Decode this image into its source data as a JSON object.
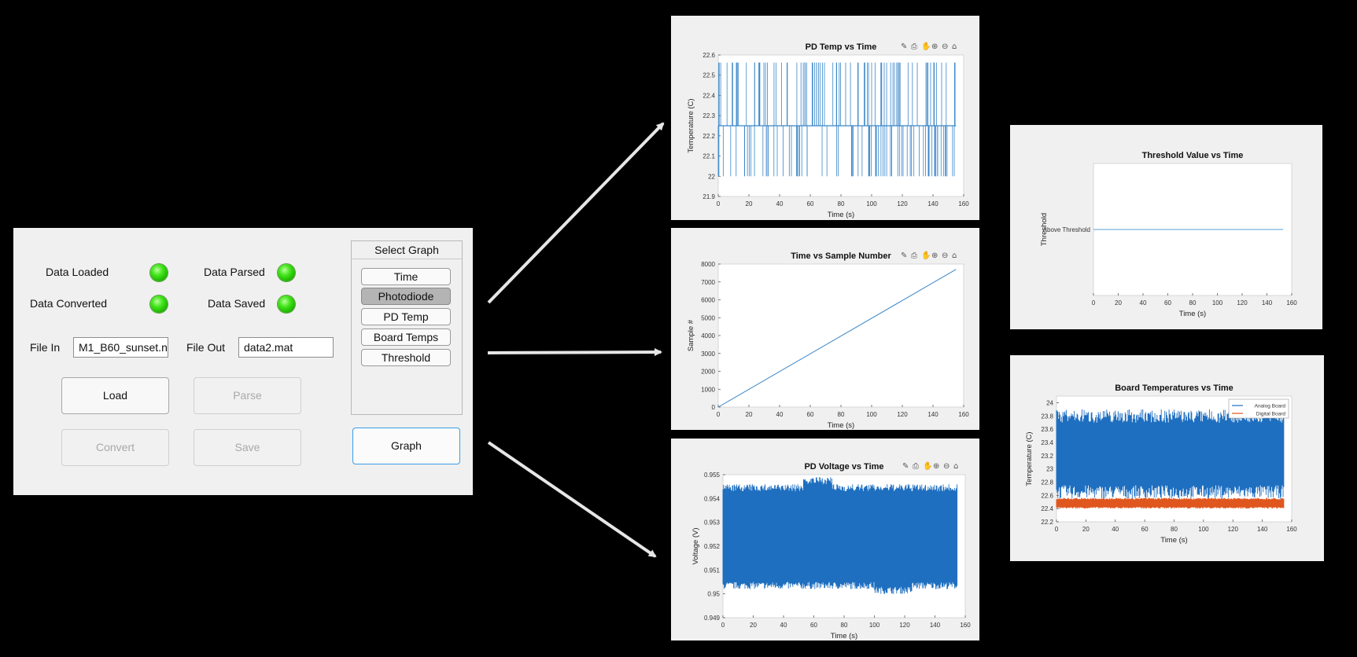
{
  "panel": {
    "indicators": [
      {
        "label": "Data Loaded"
      },
      {
        "label": "Data Parsed"
      },
      {
        "label": "Data Converted"
      },
      {
        "label": "Data Saved"
      }
    ],
    "file_in_label": "File In",
    "file_in_value": "M1_B60_sunset.n",
    "file_out_label": "File Out",
    "file_out_value": "data2.mat",
    "buttons": {
      "load": "Load",
      "parse": "Parse",
      "convert": "Convert",
      "save": "Save",
      "graph": "Graph"
    },
    "select_graph": {
      "title": "Select Graph",
      "options": [
        "Time",
        "Photodiode",
        "PD Temp",
        "Board Temps",
        "Threshold"
      ],
      "selected": "Photodiode"
    },
    "indicator_color": "#3ddc1a"
  },
  "chart_data": [
    {
      "type": "line",
      "title": "PD Temp vs Time",
      "xlabel": "Time (s)",
      "ylabel": "Temperature (C)",
      "xlim": [
        0,
        160
      ],
      "ylim": [
        21.9,
        22.6
      ],
      "xticks": [
        "0",
        "20",
        "40",
        "60",
        "80",
        "100",
        "120",
        "140",
        "160"
      ],
      "yticks": [
        "21.9",
        "22",
        "22.1",
        "22.2",
        "22.3",
        "22.4",
        "22.5",
        "22.6"
      ],
      "series": [
        {
          "levels": [
            22.0,
            22.25,
            22.5625
          ],
          "x_range": [
            0,
            155
          ],
          "color": "#3a86c8"
        }
      ],
      "toolbar": true
    },
    {
      "type": "line",
      "title": "Time vs Sample Number",
      "xlabel": "Time (s)",
      "ylabel": "Sample #",
      "xlim": [
        0,
        160
      ],
      "ylim": [
        0,
        8000
      ],
      "xticks": [
        "0",
        "20",
        "40",
        "60",
        "80",
        "100",
        "120",
        "140",
        "160"
      ],
      "yticks": [
        "0",
        "1000",
        "2000",
        "3000",
        "4000",
        "5000",
        "6000",
        "7000",
        "8000"
      ],
      "series": [
        {
          "x": [
            0,
            155
          ],
          "y": [
            0,
            7700
          ],
          "color": "#3a86c8"
        }
      ],
      "toolbar": true
    },
    {
      "type": "line",
      "title": "PD Voltage vs Time",
      "xlabel": "Time (s)",
      "ylabel": "Voltage (V)",
      "xlim": [
        0,
        160
      ],
      "ylim": [
        0.949,
        0.955
      ],
      "xticks": [
        "0",
        "20",
        "40",
        "60",
        "80",
        "100",
        "120",
        "140",
        "160"
      ],
      "yticks": [
        "0.949",
        "0.95",
        "0.951",
        "0.952",
        "0.953",
        "0.954",
        "0.955"
      ],
      "series": [
        {
          "center": 0.9527,
          "band": [
            0.9502,
            0.9546
          ],
          "x_range": [
            0,
            155
          ],
          "color": "#1f6fc0"
        }
      ],
      "toolbar": true
    },
    {
      "type": "line",
      "title": "Threshold Value vs Time",
      "xlabel": "Time (s)",
      "ylabel": "Threshold",
      "xlim": [
        0,
        160
      ],
      "xticks": [
        "0",
        "20",
        "40",
        "60",
        "80",
        "100",
        "120",
        "140",
        "160"
      ],
      "ycategories": [
        "Above Threshold"
      ],
      "series": [
        {
          "x": [
            0,
            153
          ],
          "y": [
            "Above Threshold",
            "Above Threshold"
          ],
          "color": "#5aa0d6"
        }
      ],
      "toolbar": false
    },
    {
      "type": "line",
      "title": "Board Temperatures vs Time",
      "xlabel": "Time (s)",
      "ylabel": "Temperature (C)",
      "xlim": [
        0,
        160
      ],
      "ylim": [
        22.2,
        24.1
      ],
      "xticks": [
        "0",
        "20",
        "40",
        "60",
        "80",
        "100",
        "120",
        "140",
        "160"
      ],
      "yticks": [
        "22.2",
        "22.4",
        "22.6",
        "22.8",
        "23",
        "23.2",
        "23.4",
        "23.6",
        "23.8",
        "24"
      ],
      "series": [
        {
          "name": "Analog Board",
          "band": [
            22.55,
            23.9
          ],
          "x_range": [
            0,
            155
          ],
          "color": "#1f6fc0"
        },
        {
          "name": "Digital Board",
          "band": [
            22.4,
            22.5625
          ],
          "x_range": [
            0,
            155
          ],
          "color": "#e0561f"
        }
      ],
      "legend": "top-right",
      "toolbar": false
    }
  ]
}
